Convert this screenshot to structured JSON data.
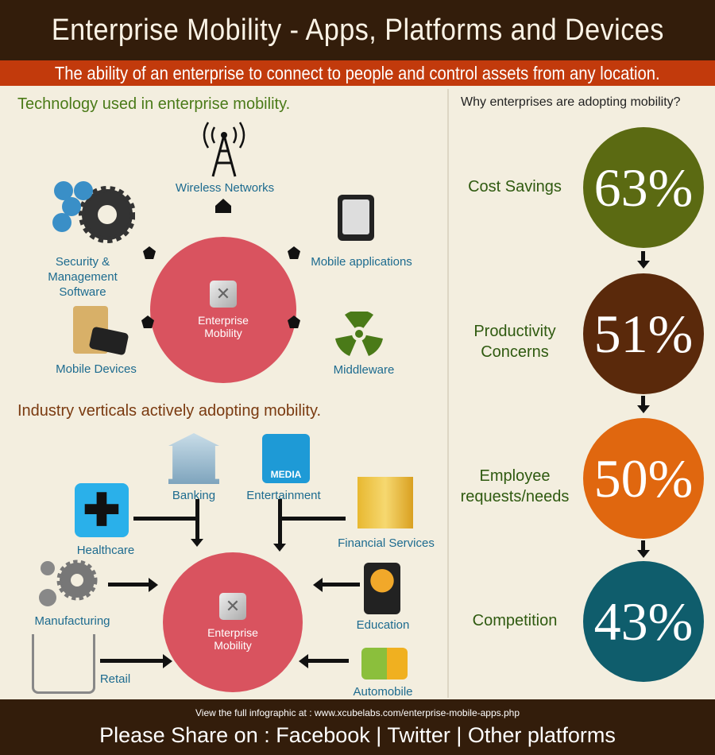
{
  "header": {
    "title": "Enterprise Mobility - Apps, Platforms and Devices",
    "subtitle": "The ability of an enterprise to connect to people and control assets from any location."
  },
  "technology": {
    "title": "Technology used in enterprise mobility.",
    "center": [
      "Enterprise",
      "Mobility"
    ],
    "items": [
      "Wireless Networks",
      "Mobile applications",
      "Middleware",
      "Mobile Devices",
      "Security & Management Software"
    ]
  },
  "industry": {
    "title": "Industry verticals actively adopting mobility.",
    "center": [
      "Enterprise",
      "Mobility"
    ],
    "media_badge": "MEDIA",
    "items": [
      "Banking",
      "Entertainment",
      "Healthcare",
      "Financial Services",
      "Manufacturing",
      "Education",
      "Retail",
      "Automobile"
    ]
  },
  "why": {
    "title": "Why enterprises are adopting mobility?",
    "reasons": [
      {
        "label": "Cost Savings",
        "value": "63%",
        "color": "#5b6a12"
      },
      {
        "label": "Productivity Concerns",
        "value": "51%",
        "color": "#5a290b"
      },
      {
        "label": "Employee requests/needs",
        "value": "50%",
        "color": "#e0670f"
      },
      {
        "label": "Competition",
        "value": "43%",
        "color": "#0f5d6c"
      }
    ]
  },
  "footer": {
    "link_text": "View the full infographic at :  www.xcubelabs.com/enterprise-mobile-apps.php",
    "share": "Please Share on : Facebook | Twitter | Other platforms"
  }
}
